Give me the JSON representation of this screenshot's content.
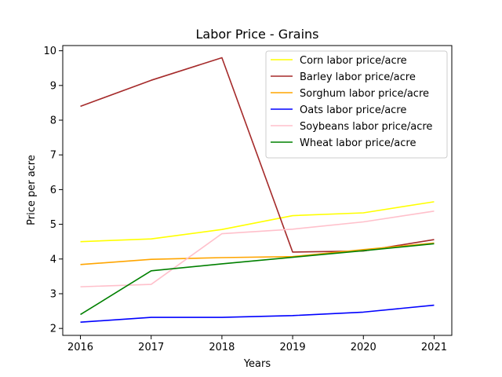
{
  "chart_data": {
    "type": "line",
    "title": "Labor Price - Grains",
    "xlabel": "Years",
    "ylabel": "Price per acre",
    "x": [
      2016,
      2017,
      2018,
      2019,
      2020,
      2021
    ],
    "x_ticks": [
      "2016",
      "2017",
      "2018",
      "2019",
      "2020",
      "2021"
    ],
    "y_ticks": [
      "2",
      "3",
      "4",
      "5",
      "6",
      "7",
      "8",
      "9",
      "10"
    ],
    "xlim": [
      2015.75,
      2021.25
    ],
    "ylim": [
      1.8,
      10.15
    ],
    "grid": false,
    "legend_position": "top-right",
    "series": [
      {
        "name": "Corn labor price/acre",
        "color": "#ffff00",
        "values": [
          4.5,
          4.58,
          4.85,
          5.25,
          5.33,
          5.65
        ]
      },
      {
        "name": "Barley labor price/acre",
        "color": "#a52a2a",
        "values": [
          8.4,
          9.15,
          9.8,
          4.2,
          4.23,
          4.56
        ]
      },
      {
        "name": "Sorghum labor price/acre",
        "color": "#ffa500",
        "values": [
          3.84,
          3.99,
          4.04,
          4.07,
          4.27,
          4.46
        ]
      },
      {
        "name": "Oats labor price/acre",
        "color": "#0000ff",
        "values": [
          2.18,
          2.32,
          2.32,
          2.37,
          2.47,
          2.67
        ]
      },
      {
        "name": "Soybeans labor price/acre",
        "color": "#ffc0cb",
        "values": [
          3.2,
          3.27,
          4.73,
          4.86,
          5.07,
          5.38
        ]
      },
      {
        "name": "Wheat labor price/acre",
        "color": "#008000",
        "values": [
          2.4,
          3.66,
          3.86,
          4.05,
          4.24,
          4.44
        ]
      }
    ]
  }
}
